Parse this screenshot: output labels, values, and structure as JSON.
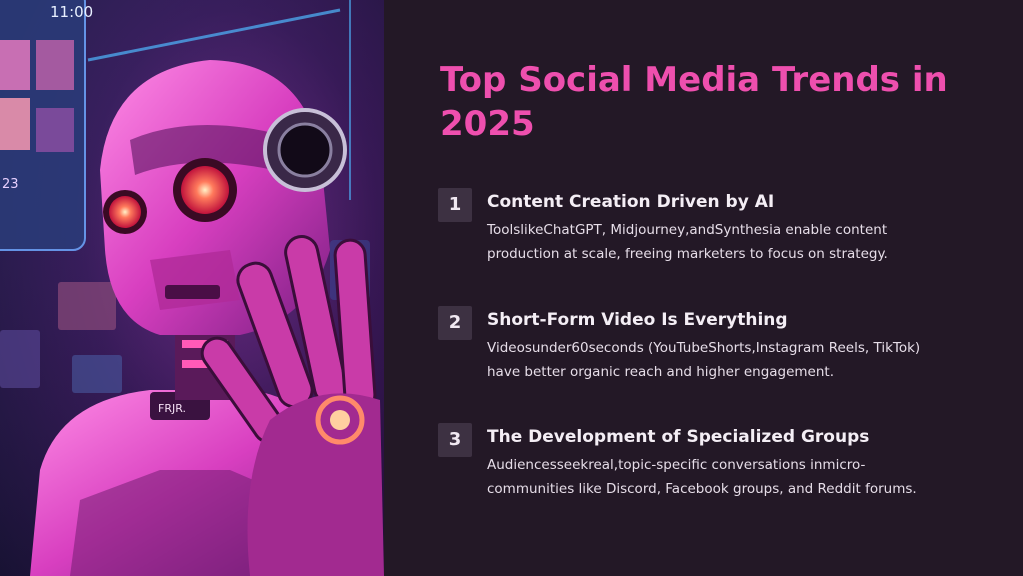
{
  "hero": {
    "phone_time": "11:00",
    "phone_number": "23",
    "chest_label": "FRJR."
  },
  "title": "Top Social Media Trends in 2025",
  "trends": [
    {
      "number": "1",
      "title": "Content Creation Driven by AI",
      "description": "ToolslikeChatGPT, Midjourney,andSynthesia enable content production at scale, freeing marketers to focus on strategy."
    },
    {
      "number": "2",
      "title": "Short-Form Video Is Everything",
      "description": "Videosunder60seconds (YouTubeShorts,Instagram Reels, TikTok) have better organic reach and higher engagement."
    },
    {
      "number": "3",
      "title": "The Development of Specialized Groups",
      "description": "Audiencesseekreal,topic-specific conversations inmicro-communities like Discord, Facebook groups, and Reddit forums."
    }
  ]
}
